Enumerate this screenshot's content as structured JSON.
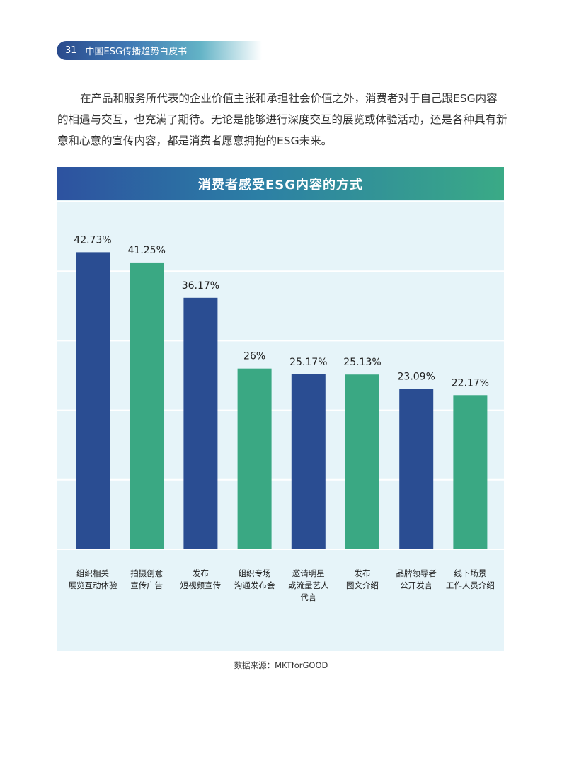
{
  "header": {
    "page_number": "31",
    "title": "中国ESG传播趋势白皮书"
  },
  "body_text": "在产品和服务所代表的企业价值主张和承担社会价值之外，消费者对于自己跟ESG内容的相遇与交互，也充满了期待。无论是能够进行深度交互的展览或体验活动，还是各种具有新意和心意的宣传内容，都是消费者愿意拥抱的ESG未来。",
  "source": "数据来源：MKTforGOOD",
  "colors": {
    "dark_blue": "#2a4d92",
    "green": "#3aa883",
    "chart_bg": "#e6f4f9"
  },
  "chart_data": {
    "type": "bar",
    "title": "消费者感受ESG内容的方式",
    "categories": [
      [
        "组织相关",
        "展览互动体验"
      ],
      [
        "拍摄创意",
        "宣传广告"
      ],
      [
        "发布",
        "短视频宣传"
      ],
      [
        "组织专场",
        "沟通发布会"
      ],
      [
        "邀请明星",
        "或流量艺人",
        "代言"
      ],
      [
        "发布",
        "图文介绍"
      ],
      [
        "品牌领导者",
        "公开发言"
      ],
      [
        "线下场景",
        "工作人员介绍"
      ]
    ],
    "values": [
      42.73,
      41.25,
      36.17,
      26,
      25.17,
      25.13,
      23.09,
      22.17
    ],
    "value_labels": [
      "42.73%",
      "41.25%",
      "36.17%",
      "26%",
      "25.17%",
      "25.13%",
      "23.09%",
      "22.17%"
    ],
    "bar_colors": [
      "#2a4d92",
      "#3aa883",
      "#2a4d92",
      "#3aa883",
      "#2a4d92",
      "#3aa883",
      "#2a4d92",
      "#3aa883"
    ],
    "ylim": [
      0,
      50
    ],
    "gridlines": [
      10,
      20,
      30,
      40,
      50
    ],
    "grid": true
  }
}
